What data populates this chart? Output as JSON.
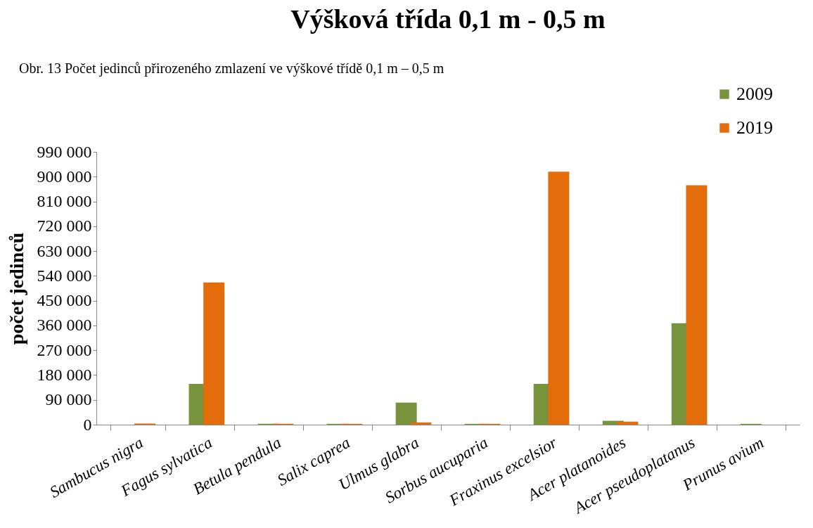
{
  "chart_data": {
    "type": "bar",
    "title": "Výšková třída 0,1 m - 0,5 m",
    "ylabel": "počet jedinců",
    "annotations": [
      "Obr. 13 Počet jedinců přirozeného zmlazení ve výškové třídě 0,1 m – 0,5 m"
    ],
    "categories": [
      "Sambucus nigra",
      "Fagus sylvatica",
      "Betula pendula",
      "Salix caprea",
      "Ulmus glabra",
      "Sorbus aucuparia",
      "Fraxinus excelsior",
      "Acer platanoides",
      "Acer pseudoplatanus",
      "Prunus avium"
    ],
    "series": [
      {
        "name": "2009",
        "color": "#77933c",
        "values": [
          0,
          148000,
          3000,
          3000,
          80000,
          3000,
          148000,
          14000,
          368000,
          3000
        ]
      },
      {
        "name": "2019",
        "color": "#e46c0a",
        "values": [
          4000,
          516000,
          3000,
          3000,
          8000,
          3000,
          918000,
          11000,
          869000,
          0
        ]
      }
    ],
    "ylim": [
      0,
      990000
    ],
    "yticks": [
      {
        "value": 0,
        "label": "0"
      },
      {
        "value": 90000,
        "label": "90 000"
      },
      {
        "value": 180000,
        "label": "180 000"
      },
      {
        "value": 270000,
        "label": "270 000"
      },
      {
        "value": 360000,
        "label": "360 000"
      },
      {
        "value": 450000,
        "label": "450 000"
      },
      {
        "value": 540000,
        "label": "540 000"
      },
      {
        "value": 630000,
        "label": "630 000"
      },
      {
        "value": 720000,
        "label": "720 000"
      },
      {
        "value": 810000,
        "label": "810 000"
      },
      {
        "value": 900000,
        "label": "900 000"
      },
      {
        "value": 990000,
        "label": "990 000"
      }
    ],
    "grid": false,
    "legend": "top right"
  }
}
